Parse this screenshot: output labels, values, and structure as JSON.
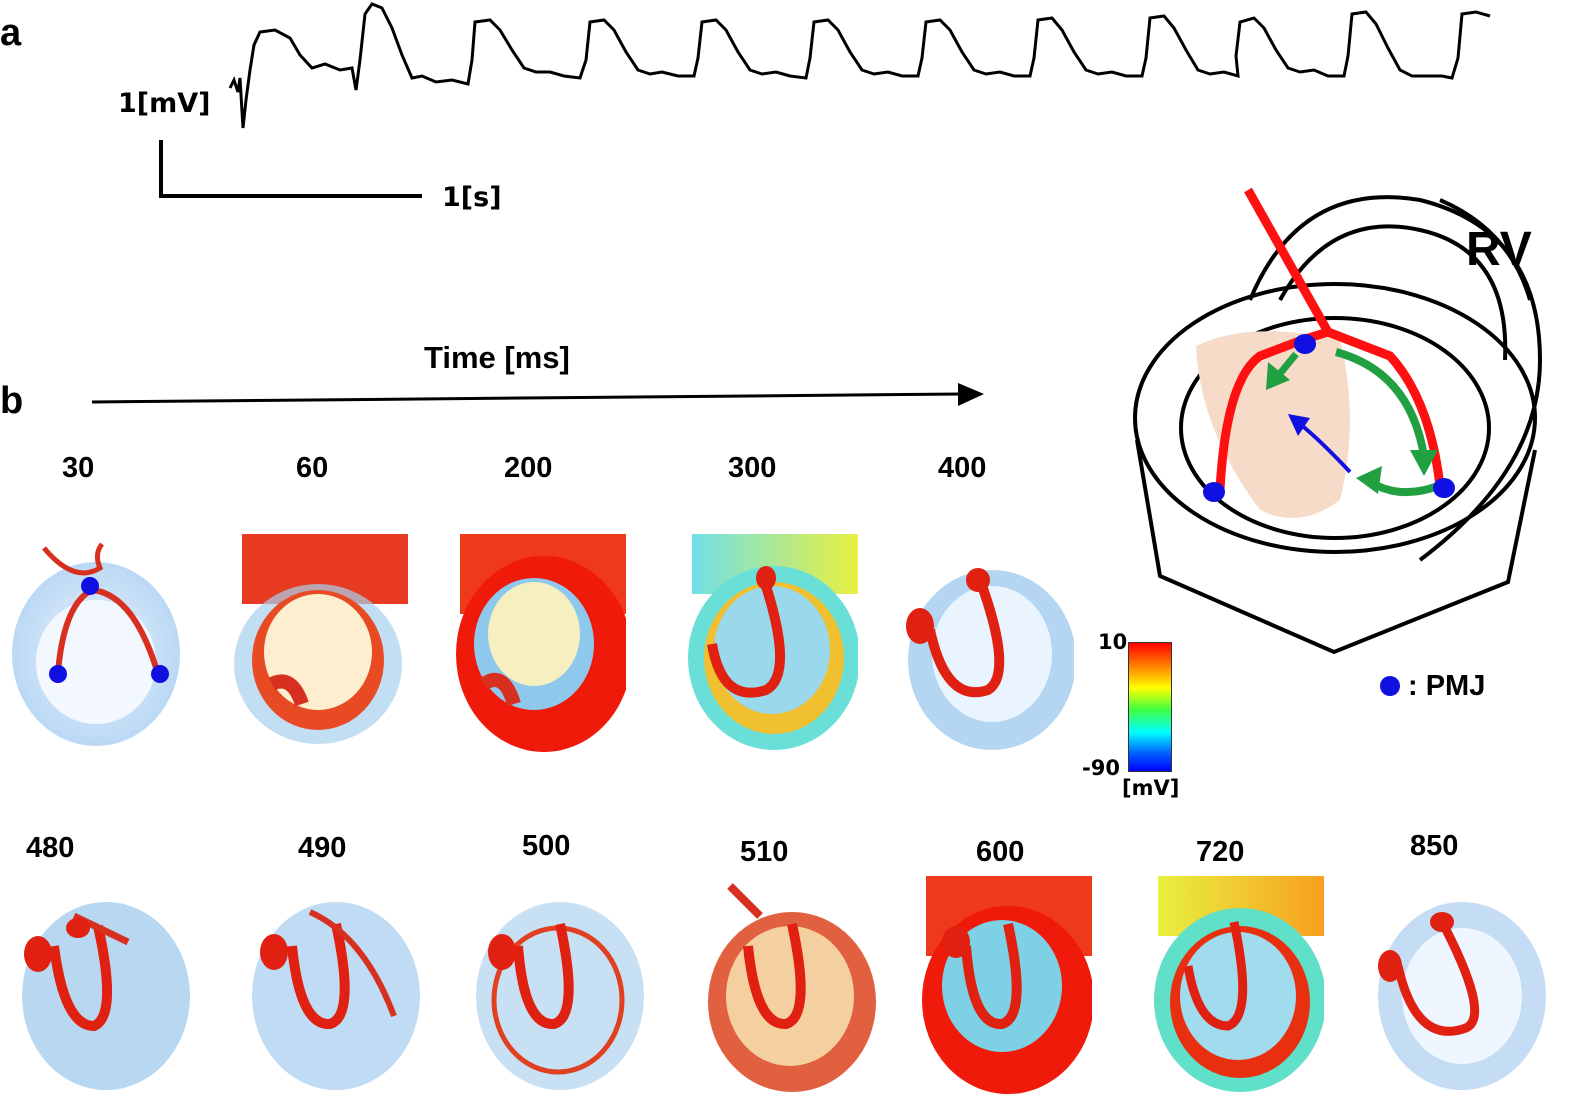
{
  "panel_a": {
    "letter": "a",
    "voltage_scale": "1[mV]",
    "time_scale": "1[s]"
  },
  "panel_b": {
    "letter": "b",
    "axis_label": "Time [ms]",
    "row1_times": [
      "30",
      "60",
      "200",
      "300",
      "400"
    ],
    "row2_times": [
      "480",
      "490",
      "500",
      "510",
      "600",
      "720",
      "850"
    ]
  },
  "colorbar": {
    "max": "10",
    "min": "-90",
    "unit": "[mV]",
    "colors": [
      "#ff0000",
      "#ff8000",
      "#ffff00",
      "#40ff40",
      "#00ffff",
      "#0060ff",
      "#0000ff"
    ]
  },
  "schematic": {
    "chamber_label": "RV",
    "legend": ": PMJ",
    "pmj_color": "#1010e0",
    "purkinje_color": "#ff1010",
    "arrow_green": "#20a040",
    "arrow_blue": "#1010e0"
  }
}
